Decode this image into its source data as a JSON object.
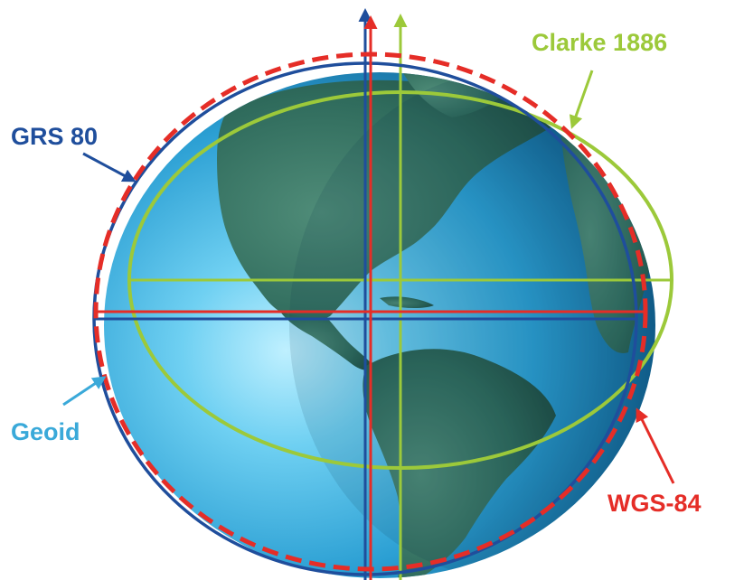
{
  "labels": {
    "clarke": "Clarke 1886",
    "grs80": "GRS 80",
    "geoid": "Geoid",
    "wgs84": "WGS-84"
  },
  "colors": {
    "clarke": "#9cc93a",
    "grs80": "#1f4e9c",
    "geoid": "#3aa9d9",
    "wgs84": "#e52d27",
    "ocean_light": "#9fe3fb",
    "ocean_mid": "#2fa7d8",
    "ocean_dark": "#0b4d77",
    "land": "#2f6b5c"
  }
}
